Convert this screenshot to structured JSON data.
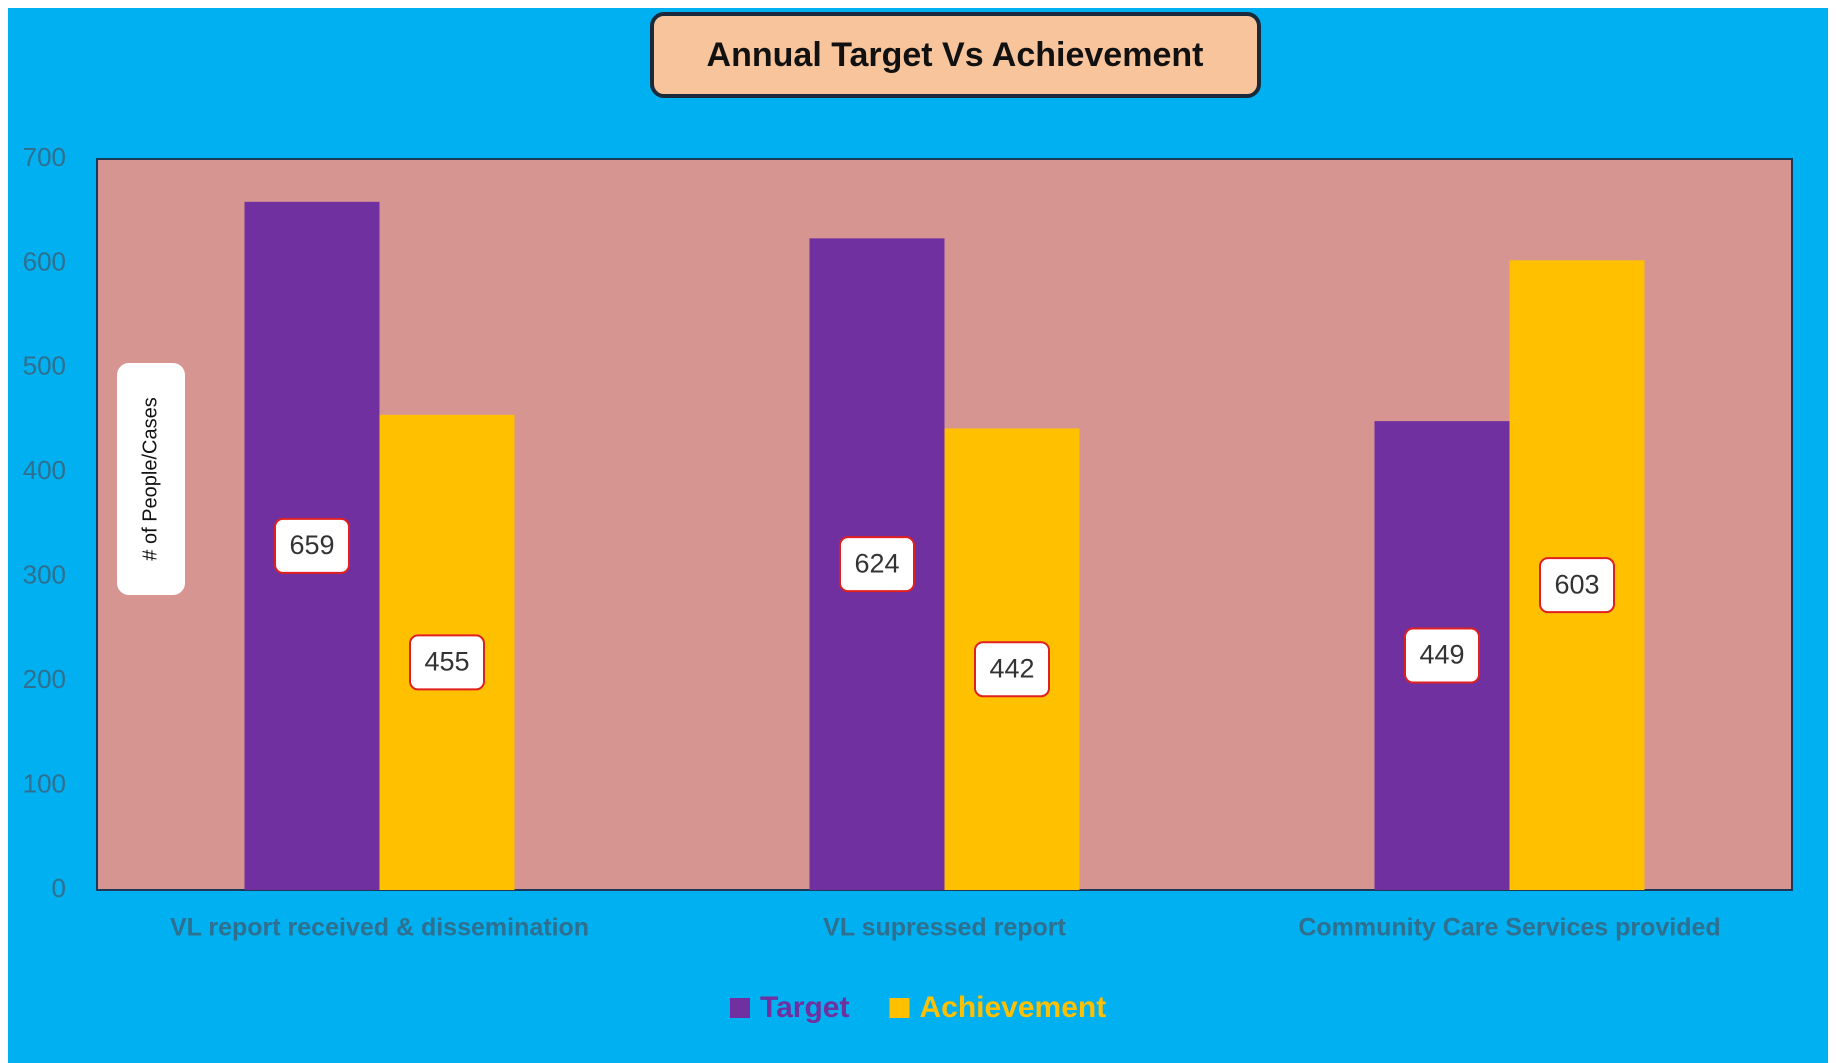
{
  "chart_data": {
    "type": "bar",
    "title": "Annual Target Vs Achievement",
    "y_label": "# of People/Cases",
    "categories": [
      "VL report received & dissemination",
      "VL supressed report",
      "Community Care Services provided"
    ],
    "series": [
      {
        "name": "Target",
        "color": "#7030a0",
        "values": [
          659,
          624,
          449
        ]
      },
      {
        "name": "Achievement",
        "color": "#ffc000",
        "values": [
          455,
          442,
          603
        ]
      }
    ],
    "ylim": [
      0,
      700
    ],
    "yticks": [
      0,
      100,
      200,
      300,
      400,
      500,
      600,
      700
    ],
    "grid": false
  }
}
